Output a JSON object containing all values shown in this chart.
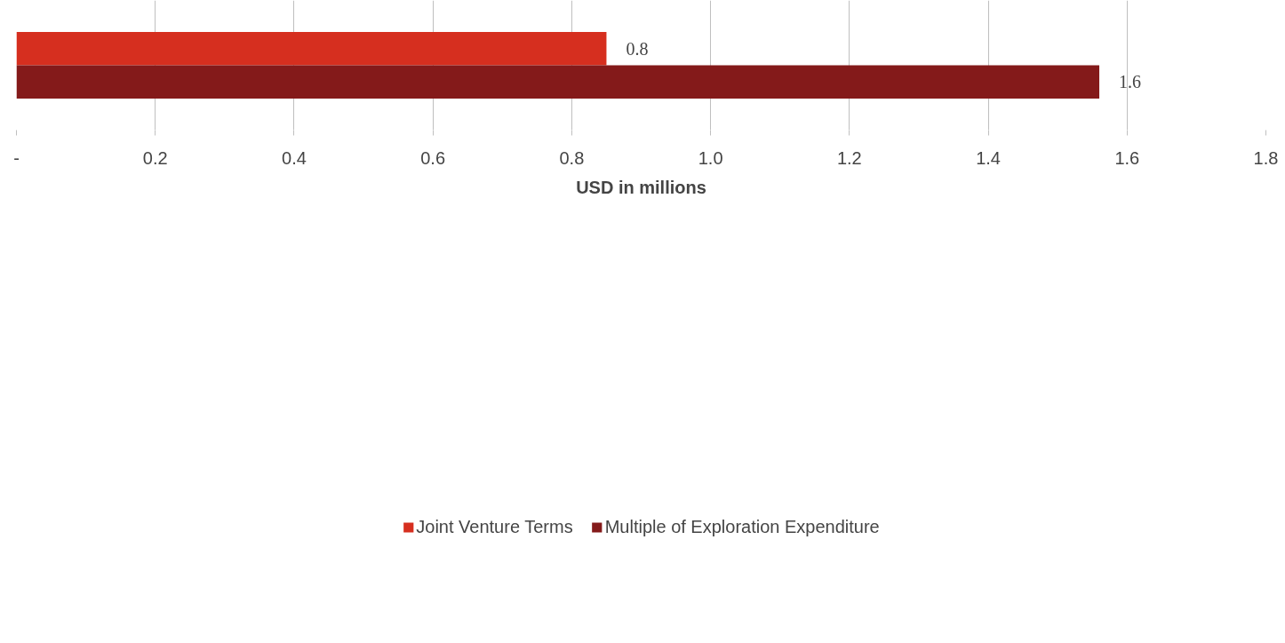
{
  "chart_data": {
    "type": "bar",
    "orientation": "horizontal",
    "xlabel": "USD in millions",
    "categories": [
      null
    ],
    "series": [
      {
        "name": "Joint Venture Terms",
        "color": "#d62f1f",
        "values": [
          0.85
        ],
        "value_labels": [
          "0.8"
        ]
      },
      {
        "name": "Multiple of Exploration Expenditure",
        "color": "#841a1a",
        "values": [
          1.56
        ],
        "value_labels": [
          "1.6"
        ]
      }
    ],
    "xlim": [
      0,
      1.8
    ],
    "xticks": [
      {
        "value": 0,
        "label": "-"
      },
      0.2,
      0.4,
      0.6,
      0.8,
      {
        "value": 1.0,
        "label": "1.0"
      },
      1.2,
      1.4,
      1.6,
      1.8
    ],
    "grid": "x",
    "legend": "bottom"
  }
}
